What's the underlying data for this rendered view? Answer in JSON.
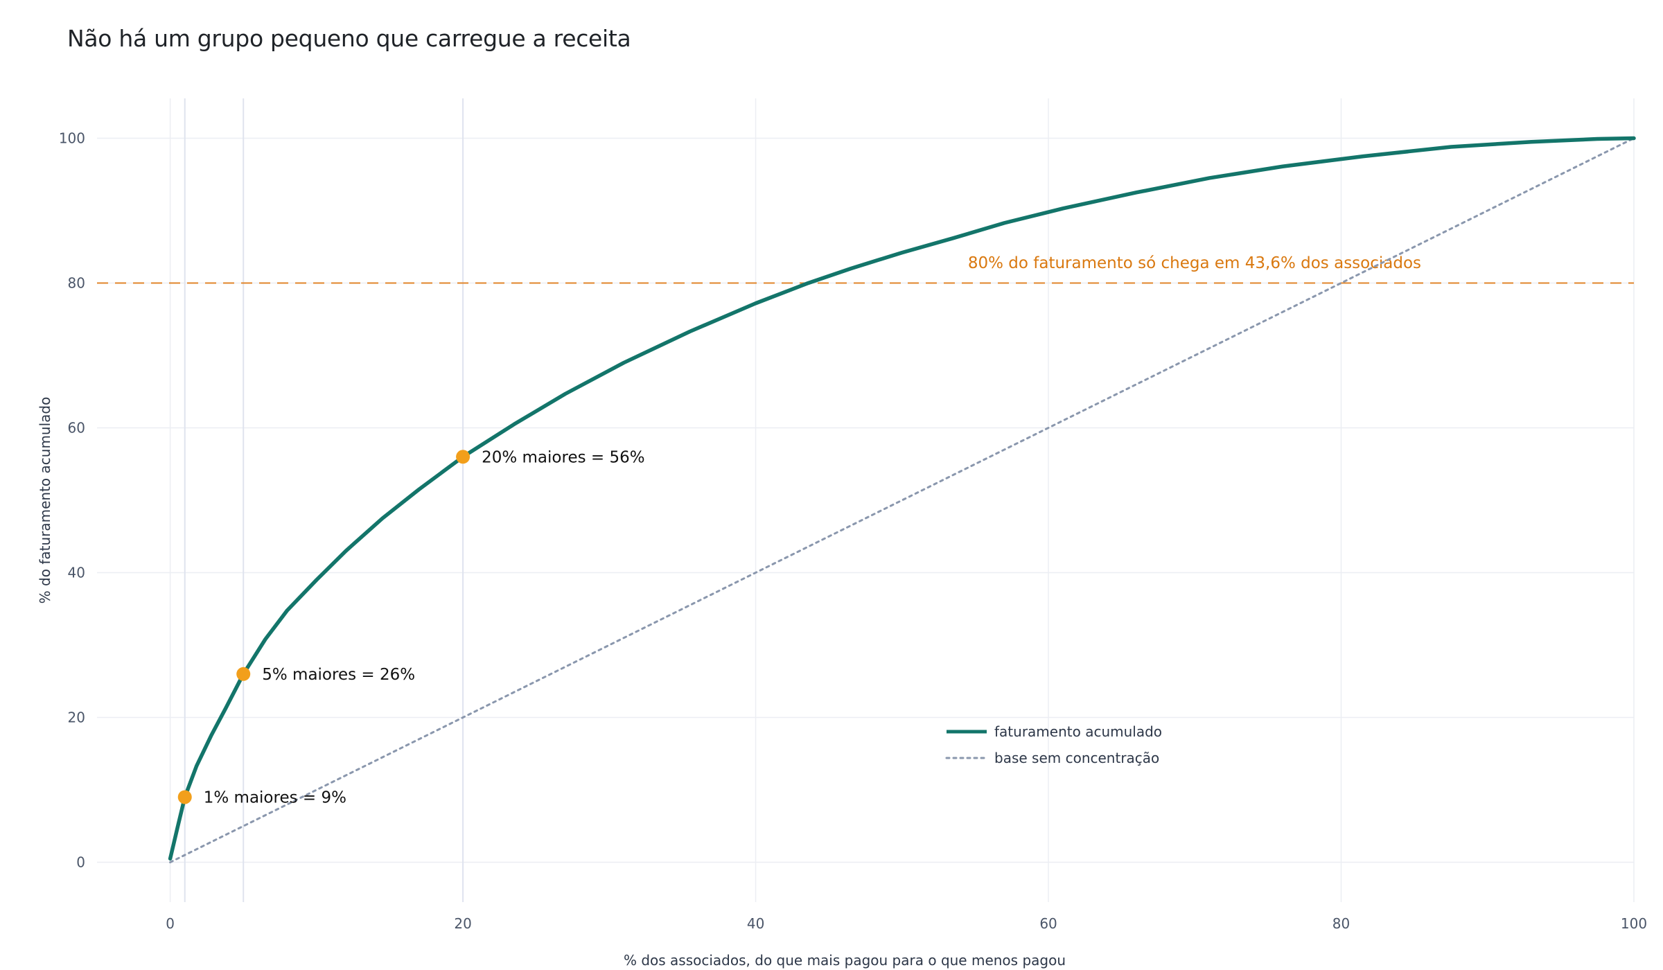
{
  "chart_data": {
    "type": "line",
    "title": "Não há um grupo pequeno que carregue a receita",
    "xlabel": "% dos associados, do que mais pagou para o que menos pagou",
    "ylabel": "% do faturamento acumulado",
    "xlim": [
      -5,
      100
    ],
    "ylim": [
      -5.5,
      105.5
    ],
    "x_ticks": [
      0,
      20,
      40,
      60,
      80,
      100
    ],
    "y_ticks": [
      0,
      20,
      40,
      60,
      80,
      100
    ],
    "grid": true,
    "legend_position": "bottom-right",
    "colors": {
      "curve": "#13756a",
      "baseline": "#8a97ad",
      "reference": "#e0852a",
      "marker": "#f29f1b",
      "grid": "#eceef3"
    },
    "series": [
      {
        "name": "faturamento acumulado",
        "style": "solid",
        "x": [
          0,
          0.5,
          1,
          1.8,
          2.8,
          3.8,
          5,
          6.5,
          8,
          10,
          12,
          14.5,
          17,
          20,
          23.5,
          27,
          31,
          35.5,
          40,
          43.6,
          46.5,
          50,
          53.5,
          57,
          61,
          66,
          71,
          76,
          81.5,
          87.5,
          93,
          97.5,
          100
        ],
        "y": [
          0.5,
          4.8,
          9,
          13.3,
          17.5,
          21.3,
          26,
          30.8,
          34.8,
          39,
          43,
          47.5,
          51.5,
          56,
          60.5,
          64.7,
          69,
          73.3,
          77.2,
          80,
          82,
          84.2,
          86.2,
          88.3,
          90.3,
          92.5,
          94.5,
          96.1,
          97.5,
          98.8,
          99.5,
          99.9,
          100
        ]
      },
      {
        "name": "base sem concentração",
        "style": "dotted",
        "x": [
          0,
          100
        ],
        "y": [
          0,
          100
        ]
      }
    ],
    "vertical_lines": [
      1,
      5,
      20
    ],
    "reference_line": {
      "y": 80,
      "label": "80% do faturamento só chega em 43,6% dos associados",
      "label_x": 54.5,
      "label_y": 82.8
    },
    "annotations": [
      {
        "x": 1,
        "y": 9,
        "label": "1% maiores = 9%"
      },
      {
        "x": 5,
        "y": 26,
        "label": "5% maiores = 26%"
      },
      {
        "x": 20,
        "y": 56,
        "label": "20% maiores = 56%"
      }
    ]
  }
}
